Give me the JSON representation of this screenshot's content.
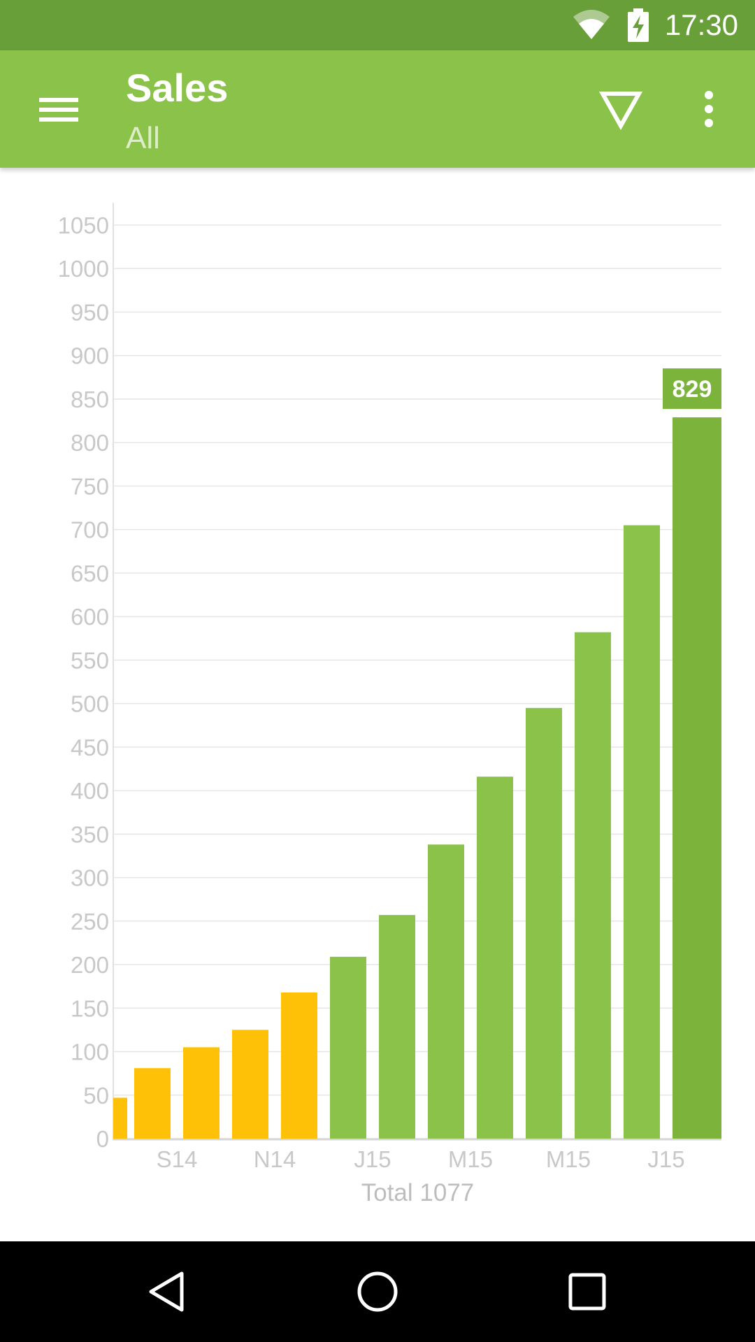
{
  "status_bar": {
    "time": "17:30",
    "icons": [
      "wifi-icon",
      "battery-charging-icon"
    ]
  },
  "app_bar": {
    "title": "Sales",
    "subtitle": "All",
    "icons": [
      "menu-icon",
      "filter-icon",
      "more-vert-icon"
    ],
    "color": "#8bc34a"
  },
  "chart_data": {
    "type": "bar",
    "bars": [
      {
        "value": 47,
        "color": "#ffc107"
      },
      {
        "value": 81,
        "color": "#ffc107"
      },
      {
        "value": 105,
        "color": "#ffc107"
      },
      {
        "value": 125,
        "color": "#ffc107"
      },
      {
        "value": 168,
        "color": "#ffc107"
      },
      {
        "value": 209,
        "color": "#8bc34a"
      },
      {
        "value": 257,
        "color": "#8bc34a"
      },
      {
        "value": 338,
        "color": "#8bc34a"
      },
      {
        "value": 416,
        "color": "#8bc34a"
      },
      {
        "value": 495,
        "color": "#8bc34a"
      },
      {
        "value": 582,
        "color": "#8bc34a"
      },
      {
        "value": 705,
        "color": "#8bc34a"
      },
      {
        "value": 829,
        "color": "#7cb33a"
      }
    ],
    "x_tick_labels": [
      "S14",
      "N14",
      "J15",
      "M15",
      "M15",
      "J15"
    ],
    "y_ticks": [
      0,
      50,
      100,
      150,
      200,
      250,
      300,
      350,
      400,
      450,
      500,
      550,
      600,
      650,
      700,
      750,
      800,
      850,
      900,
      950,
      1000,
      1050
    ],
    "ylim": [
      0,
      1050
    ],
    "grid": true,
    "highlight_label": "829",
    "total_label": "Total 1077"
  },
  "nav_bar": {
    "icons": [
      "back-icon",
      "home-icon",
      "recents-icon"
    ]
  }
}
